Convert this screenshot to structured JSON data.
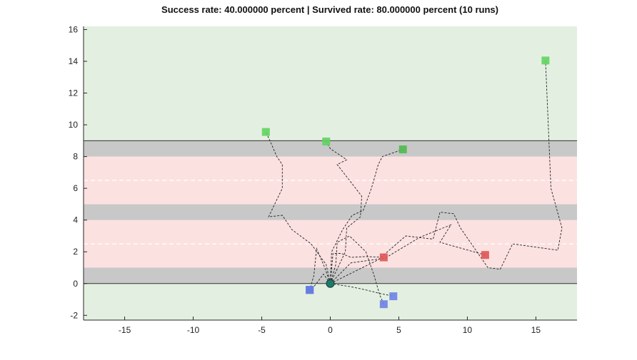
{
  "chart_data": {
    "type": "scatter",
    "title": "Success rate: 40.000000 percent | Survived rate: 80.000000 percent (10 runs)",
    "xlabel": "",
    "ylabel": "",
    "xlim": [
      -18,
      18
    ],
    "ylim": [
      -2.3,
      16.2
    ],
    "x_ticks": [
      -15,
      -10,
      -5,
      0,
      5,
      10,
      15
    ],
    "y_ticks": [
      -2,
      0,
      2,
      4,
      6,
      8,
      10,
      12,
      14,
      16
    ],
    "grid": false,
    "background_bands": [
      {
        "y0": -2.3,
        "y1": 0,
        "kind": "safe",
        "color": "#e3f0e1"
      },
      {
        "y0": 0,
        "y1": 1,
        "kind": "sidewalk",
        "color": "#c8c8c8"
      },
      {
        "y0": 1,
        "y1": 4,
        "kind": "road",
        "color": "#fce1e1"
      },
      {
        "y0": 4,
        "y1": 5,
        "kind": "median",
        "color": "#c8c8c8"
      },
      {
        "y0": 5,
        "y1": 8,
        "kind": "road",
        "color": "#fce1e1"
      },
      {
        "y0": 8,
        "y1": 9,
        "kind": "sidewalk",
        "color": "#c8c8c8"
      },
      {
        "y0": 9,
        "y1": 16.2,
        "kind": "safe",
        "color": "#e3f0e1"
      }
    ],
    "boundary_lines": [
      0,
      9
    ],
    "lane_markings": [
      2.5,
      6.5
    ],
    "start": {
      "x": 0,
      "y": 0,
      "color": "#1f7a6a"
    },
    "series": [
      {
        "outcome": "success",
        "color": "#5fd45f",
        "end": [
          -4.7,
          9.55
        ],
        "path": [
          [
            0,
            0
          ],
          [
            -0.3,
            1.2
          ],
          [
            -1.4,
            2.5
          ],
          [
            -2.8,
            3.4
          ],
          [
            -3.5,
            4.3
          ],
          [
            -4.5,
            4.2
          ],
          [
            -3.5,
            6.0
          ],
          [
            -3.5,
            7.5
          ],
          [
            -3.9,
            8.0
          ],
          [
            -4.4,
            9.0
          ],
          [
            -4.7,
            9.55
          ]
        ]
      },
      {
        "outcome": "success",
        "color": "#5fd45f",
        "end": [
          -0.3,
          8.95
        ],
        "path": [
          [
            0,
            0
          ],
          [
            1.1,
            2.0
          ],
          [
            1.2,
            3.5
          ],
          [
            2.2,
            4.2
          ],
          [
            2.3,
            5.5
          ],
          [
            1.4,
            6.5
          ],
          [
            0.5,
            7.5
          ],
          [
            1.2,
            7.8
          ],
          [
            0.0,
            8.5
          ],
          [
            -0.3,
            8.95
          ]
        ]
      },
      {
        "outcome": "success",
        "color": "#4cba4c",
        "end": [
          5.3,
          8.45
        ],
        "path": [
          [
            0,
            0
          ],
          [
            0.1,
            2.0
          ],
          [
            0.9,
            3.4
          ],
          [
            1.6,
            4.3
          ],
          [
            2.4,
            4.6
          ],
          [
            3.0,
            6.0
          ],
          [
            3.5,
            7.5
          ],
          [
            3.8,
            8.0
          ],
          [
            5.3,
            8.45
          ]
        ]
      },
      {
        "outcome": "success",
        "color": "#5fd45f",
        "end": [
          15.7,
          14.05
        ],
        "path": [
          [
            0,
            0
          ],
          [
            3.5,
            1.5
          ],
          [
            5.5,
            3.0
          ],
          [
            7.5,
            2.8
          ],
          [
            8.0,
            4.5
          ],
          [
            9.0,
            4.4
          ],
          [
            9.5,
            3.5
          ],
          [
            11.5,
            1.0
          ],
          [
            12.4,
            0.9
          ],
          [
            13.3,
            2.5
          ],
          [
            16.6,
            2.1
          ],
          [
            16.9,
            3.5
          ],
          [
            16.1,
            6.0
          ],
          [
            15.7,
            14.05
          ]
        ]
      },
      {
        "outcome": "hit",
        "color": "#e05454",
        "end": [
          3.9,
          1.65
        ],
        "path": [
          [
            0,
            0
          ],
          [
            0.2,
            1.9
          ],
          [
            0.8,
            1.9
          ],
          [
            1.5,
            1.65
          ],
          [
            2.6,
            1.7
          ],
          [
            3.9,
            1.65
          ]
        ]
      },
      {
        "outcome": "hit",
        "color": "#e05454",
        "end": [
          11.3,
          1.8
        ],
        "path": [
          [
            0,
            0
          ],
          [
            1.5,
            1.3
          ],
          [
            4.0,
            1.6
          ],
          [
            6.5,
            2.9
          ],
          [
            8.8,
            3.7
          ],
          [
            8.0,
            2.6
          ],
          [
            11.3,
            1.8
          ]
        ]
      },
      {
        "outcome": "timeout",
        "color": "#1f3fd4",
        "end": [
          -1.5,
          -0.4
        ],
        "path": [
          [
            0,
            0
          ],
          [
            -0.4,
            1.0
          ],
          [
            -1.0,
            2.2
          ],
          [
            -1.2,
            0.5
          ],
          [
            -1.5,
            -0.4
          ]
        ]
      },
      {
        "outcome": "timeout",
        "color": "#6d82e6",
        "end": [
          3.9,
          -1.3
        ],
        "path": [
          [
            0,
            0
          ],
          [
            0.4,
            1.2
          ],
          [
            0.5,
            2.6
          ],
          [
            1.4,
            3.0
          ],
          [
            2.6,
            2.0
          ],
          [
            3.2,
            0.5
          ],
          [
            3.6,
            -0.7
          ],
          [
            3.9,
            -1.3
          ]
        ]
      },
      {
        "outcome": "timeout",
        "color": "#6d82e6",
        "end": [
          4.6,
          -0.8
        ],
        "path": [
          [
            0,
            0
          ],
          [
            1.5,
            -0.2
          ],
          [
            2.6,
            -0.4
          ],
          [
            3.5,
            -0.6
          ],
          [
            4.6,
            -0.8
          ]
        ]
      },
      {
        "outcome": "timeout",
        "color": "#6d82e6",
        "end": [
          -1.5,
          -0.4
        ],
        "path": [
          [
            0,
            0
          ],
          [
            -0.5,
            0.6
          ],
          [
            -1.1,
            -0.1
          ],
          [
            -1.5,
            -0.4
          ]
        ]
      }
    ]
  }
}
